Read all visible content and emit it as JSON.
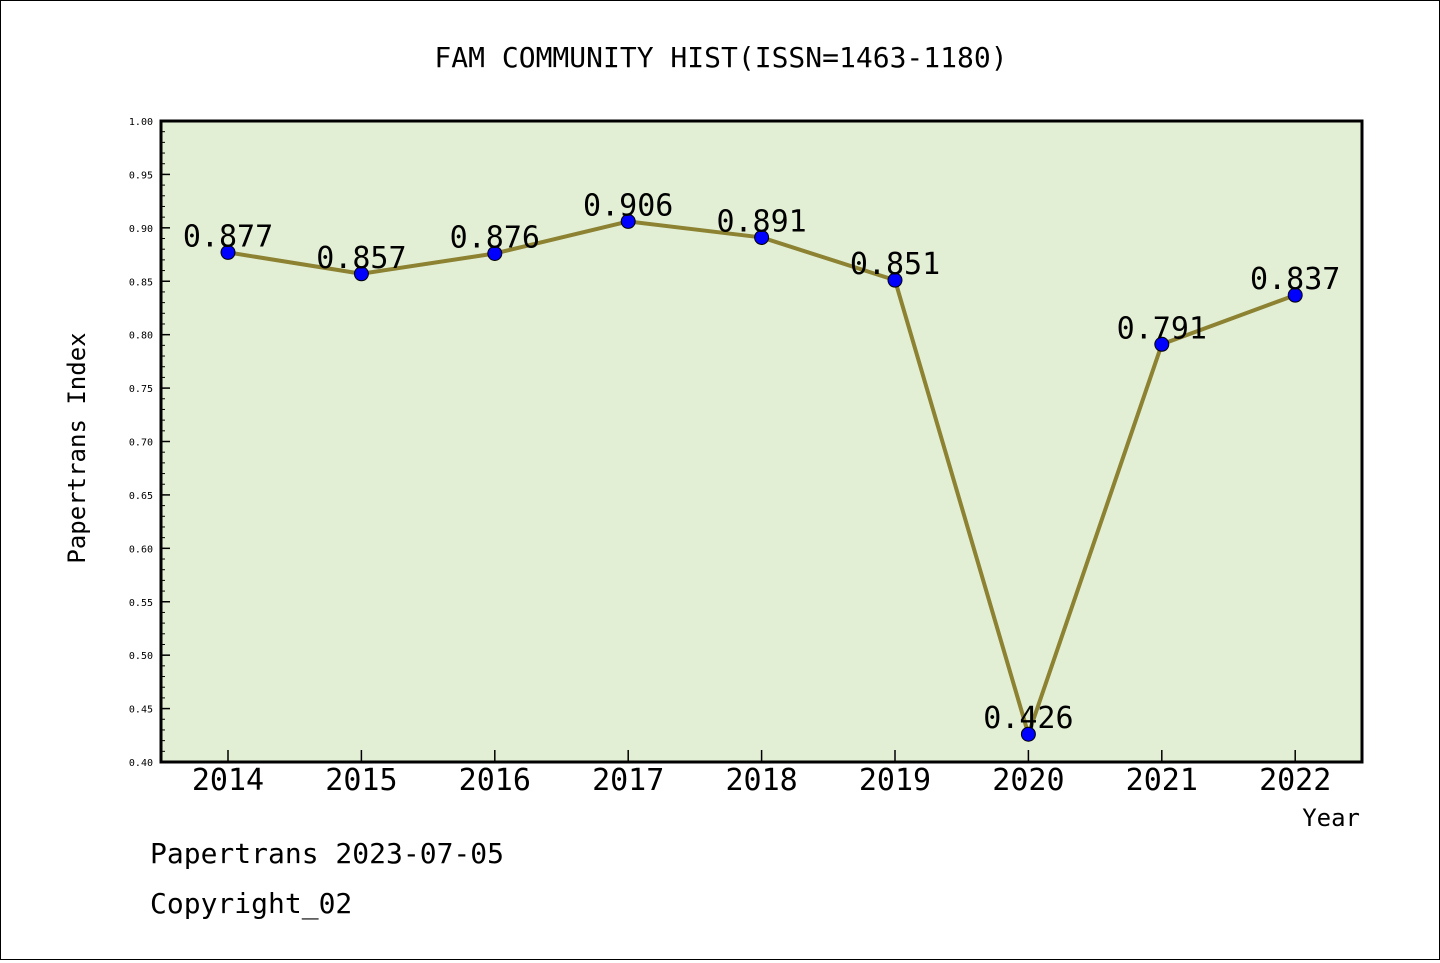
{
  "chart_data": {
    "type": "line",
    "title": "FAM COMMUNITY HIST(ISSN=1463-1180)",
    "xlabel": "Year",
    "ylabel": "Papertrans Index",
    "categories": [
      "2014",
      "2015",
      "2016",
      "2017",
      "2018",
      "2019",
      "2020",
      "2021",
      "2022"
    ],
    "series": [
      {
        "values": [
          0.877,
          0.857,
          0.876,
          0.906,
          0.891,
          0.851,
          0.426,
          0.791,
          0.837
        ],
        "labels": [
          "0.877",
          "0.857",
          "0.876",
          "0.906",
          "0.891",
          "0.851",
          "0.426",
          "0.791",
          "0.837"
        ]
      }
    ],
    "ylim": [
      0.4,
      1.0
    ],
    "yticks": [
      "0.40",
      "0.45",
      "0.50",
      "0.55",
      "0.60",
      "0.65",
      "0.70",
      "0.75",
      "0.80",
      "0.85",
      "0.90",
      "0.95",
      "1.00"
    ],
    "grid": false,
    "legend": "none",
    "colors": {
      "plot_background": "#e2efd5",
      "line": "#8c8232",
      "marker": "#0000ff"
    }
  },
  "footer": {
    "date_line": "Papertrans 2023-07-05",
    "copyright_line": "Copyright_02"
  }
}
